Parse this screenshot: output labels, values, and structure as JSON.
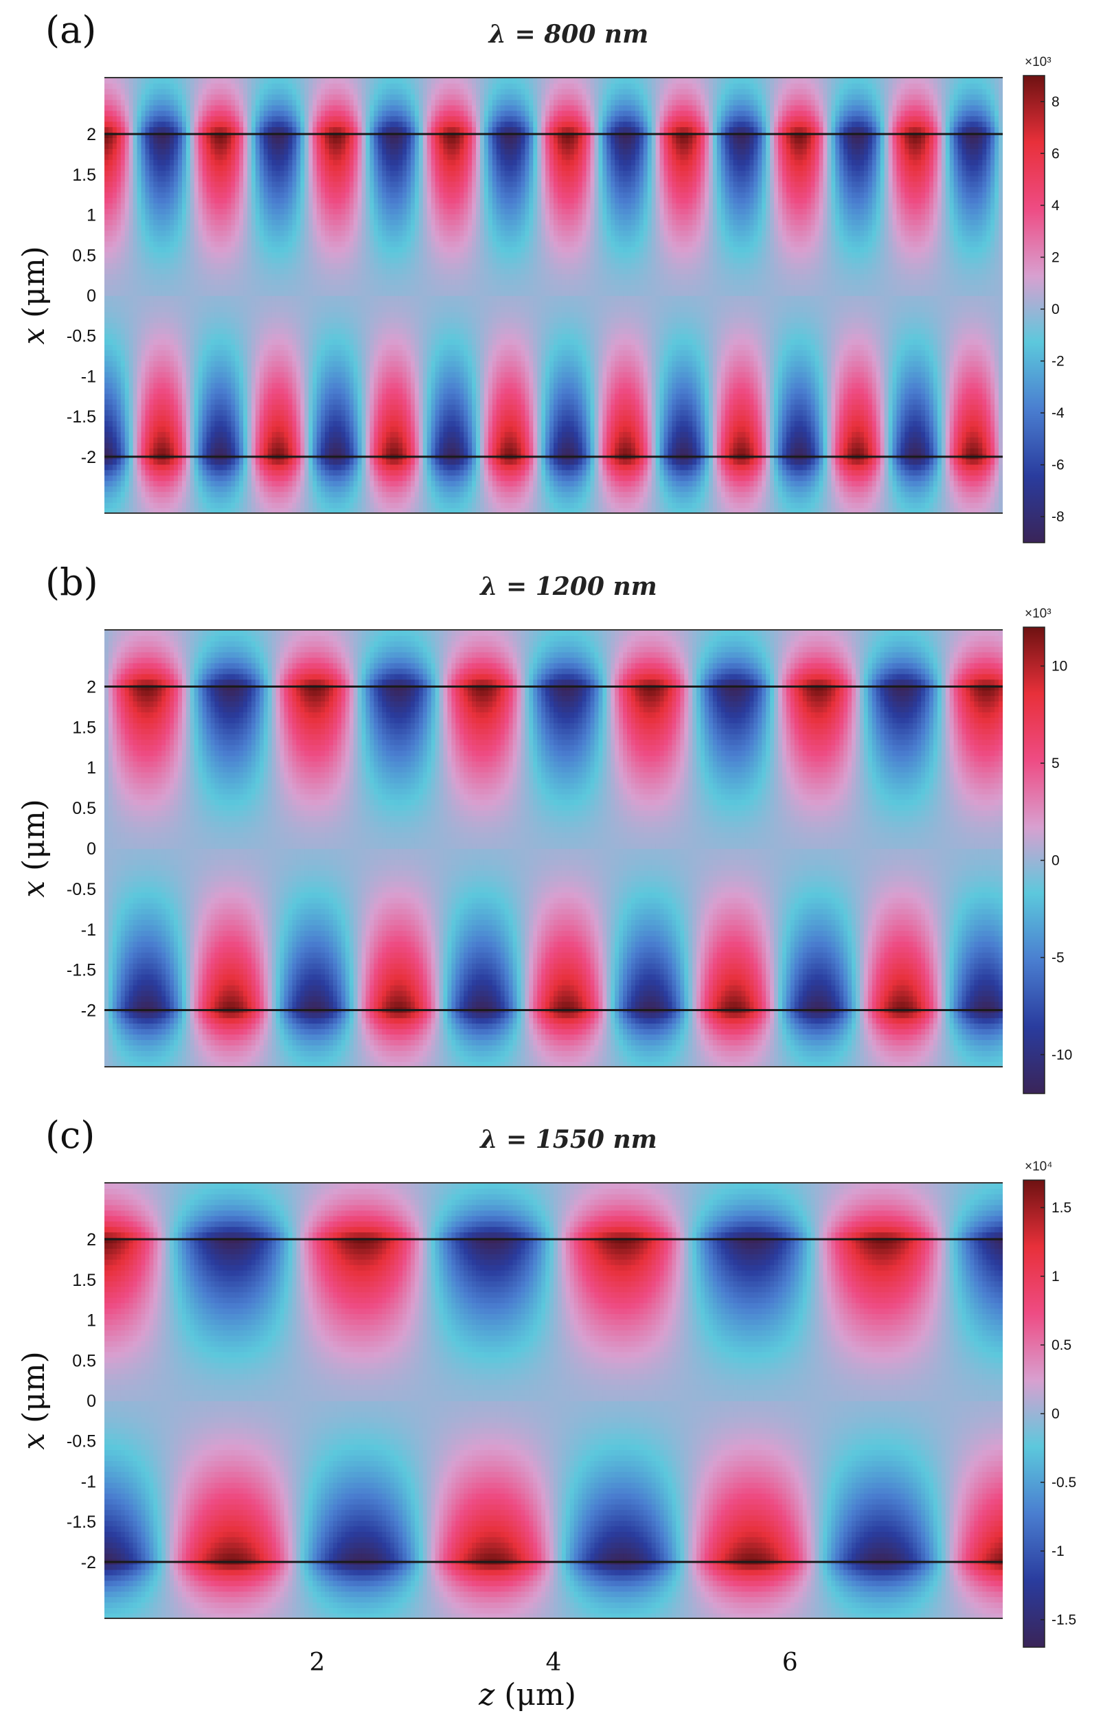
{
  "chart_data": {
    "type": "heatmap",
    "shared_x_axis": {
      "label": "z (μm)",
      "ticks": [
        2,
        4,
        6
      ],
      "tick_labels": [
        "2",
        "4",
        "6"
      ],
      "range": [
        0.2,
        7.8
      ]
    },
    "shared_y_axis": {
      "label": "x (μm)",
      "ticks": [
        2,
        1.5,
        1,
        0.5,
        0,
        -0.5,
        -1,
        -1.5,
        -2
      ],
      "tick_labels": [
        "2",
        "1.5",
        "1",
        "0.5",
        "0",
        "-0.5",
        "-1",
        "-1.5",
        "-2"
      ],
      "range": [
        -2.7,
        2.7
      ]
    },
    "boundaries_x": [
      2,
      -2
    ],
    "colormap": [
      "#3a2458",
      "#2a3c9e",
      "#4a7ed0",
      "#5cc8dc",
      "#d8a0d0",
      "#ee4c84",
      "#e8303a",
      "#6e1212"
    ],
    "panels": [
      {
        "label": "(a)",
        "title": "λ = 800 nm",
        "period_um": 0.98,
        "phase_um": 0.2,
        "colorbar": {
          "exponent": "×10³",
          "range": [
            -9,
            9
          ],
          "ticks": [
            8,
            6,
            4,
            2,
            0,
            -2,
            -4,
            -6,
            -8
          ],
          "tick_labels": [
            "8",
            "6",
            "4",
            "2",
            "0",
            "-2",
            "-4",
            "-6",
            "-8"
          ]
        }
      },
      {
        "label": "(b)",
        "title": "λ = 1200 nm",
        "period_um": 1.42,
        "phase_um": 0.56,
        "colorbar": {
          "exponent": "×10³",
          "range": [
            -12,
            12
          ],
          "ticks": [
            10,
            5,
            0,
            -5,
            -10
          ],
          "tick_labels": [
            "10",
            "5",
            "0",
            "-5",
            "-10"
          ]
        }
      },
      {
        "label": "(c)",
        "title": "λ = 1550 nm",
        "period_um": 2.2,
        "phase_um": 0.18,
        "colorbar": {
          "exponent": "×10⁴",
          "range": [
            -1.7,
            1.7
          ],
          "ticks": [
            1.5,
            1,
            0.5,
            0,
            -0.5,
            -1,
            -1.5
          ],
          "tick_labels": [
            "1.5",
            "1",
            "0.5",
            "0",
            "-0.5",
            "-1",
            "-1.5"
          ]
        }
      }
    ]
  }
}
